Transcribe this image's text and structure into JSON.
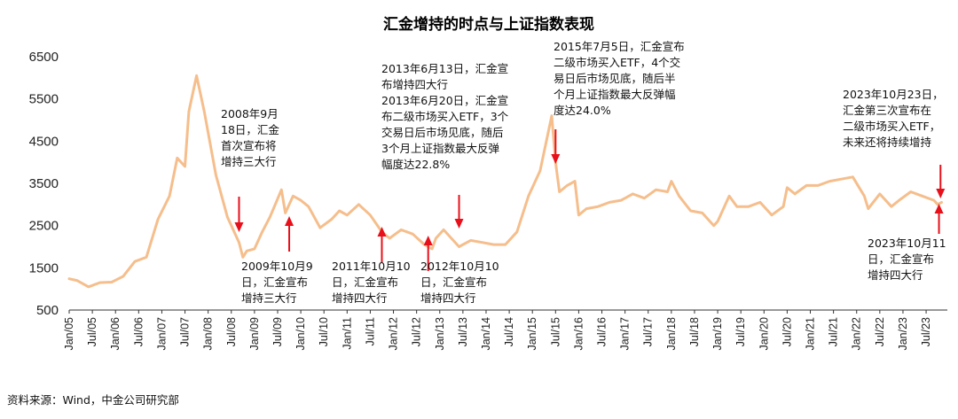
{
  "chart_data": {
    "type": "line",
    "title": "汇金增持的时点与上证指数表现",
    "source": "资料来源：Wind，中金公司研究部",
    "ylim": [
      500,
      6500
    ],
    "yticks": [
      500,
      1500,
      2500,
      3500,
      4500,
      5500,
      6500
    ],
    "xticks": [
      "Jan/05",
      "Jul/05",
      "Jan/06",
      "Jul/06",
      "Jan/07",
      "Jul/07",
      "Jan/08",
      "Jul/08",
      "Jan/09",
      "Jul/09",
      "Jan/10",
      "Jul/10",
      "Jan/11",
      "Jul/11",
      "Jan/12",
      "Jul/12",
      "Jan/13",
      "Jul/13",
      "Jan/14",
      "Jul/14",
      "Jan/15",
      "Jul/15",
      "Jan/16",
      "Jul/16",
      "Jan/17",
      "Jul/17",
      "Jan/18",
      "Jul/18",
      "Jan/19",
      "Jul/19",
      "Jan/20",
      "Jul/20",
      "Jan/21",
      "Jul/21",
      "Jan/22",
      "Jul/22",
      "Jan/23",
      "Jul/23"
    ],
    "line_color": "#F5BE8C",
    "arrow_color": "#E8101A",
    "series": [
      {
        "x": [
          "2005-01",
          "2005-03",
          "2005-06",
          "2005-09",
          "2005-12",
          "2006-03",
          "2006-06",
          "2006-09",
          "2006-12",
          "2007-03",
          "2007-05",
          "2007-07",
          "2007-08",
          "2007-10",
          "2007-12",
          "2008-03",
          "2008-06",
          "2008-09",
          "2008-10",
          "2008-11",
          "2009-01",
          "2009-03",
          "2009-05",
          "2009-08",
          "2009-09",
          "2009-11",
          "2010-01",
          "2010-03",
          "2010-06",
          "2010-09",
          "2010-11",
          "2011-01",
          "2011-04",
          "2011-07",
          "2011-10",
          "2011-12",
          "2012-03",
          "2012-06",
          "2012-09",
          "2012-11",
          "2012-12",
          "2013-02",
          "2013-06",
          "2013-09",
          "2013-12",
          "2014-03",
          "2014-06",
          "2014-09",
          "2014-12",
          "2015-03",
          "2015-06",
          "2015-07",
          "2015-08",
          "2015-10",
          "2015-12",
          "2016-01",
          "2016-03",
          "2016-06",
          "2016-09",
          "2016-12",
          "2017-03",
          "2017-06",
          "2017-09",
          "2017-12",
          "2018-01",
          "2018-03",
          "2018-06",
          "2018-09",
          "2018-12",
          "2019-01",
          "2019-04",
          "2019-06",
          "2019-09",
          "2019-12",
          "2020-03",
          "2020-06",
          "2020-07",
          "2020-09",
          "2020-12",
          "2021-03",
          "2021-06",
          "2021-09",
          "2021-12",
          "2022-03",
          "2022-04",
          "2022-07",
          "2022-10",
          "2022-12",
          "2023-03",
          "2023-06",
          "2023-09",
          "2023-10",
          "2023-11"
        ],
        "values": [
          1240,
          1200,
          1050,
          1150,
          1160,
          1300,
          1650,
          1750,
          2650,
          3200,
          4100,
          3900,
          5200,
          6050,
          5200,
          3700,
          2700,
          2100,
          1750,
          1900,
          1950,
          2350,
          2700,
          3350,
          2800,
          3200,
          3100,
          2950,
          2450,
          2650,
          2850,
          2750,
          3000,
          2750,
          2350,
          2200,
          2400,
          2300,
          2050,
          1950,
          2200,
          2400,
          2000,
          2150,
          2100,
          2050,
          2050,
          2350,
          3200,
          3800,
          5100,
          4000,
          3300,
          3450,
          3550,
          2750,
          2900,
          2950,
          3050,
          3100,
          3250,
          3150,
          3350,
          3300,
          3550,
          3200,
          2850,
          2800,
          2500,
          2600,
          3200,
          2950,
          2950,
          3050,
          2750,
          2950,
          3400,
          3250,
          3450,
          3450,
          3550,
          3600,
          3650,
          3200,
          2900,
          3250,
          2950,
          3100,
          3300,
          3200,
          3100,
          3000,
          3050
        ]
      }
    ],
    "annotations": [
      {
        "date": "2008-09",
        "direction": "down",
        "lines": [
          "2008年9月",
          "18日，汇金",
          "首次宣布将",
          "增持三大行"
        ]
      },
      {
        "date": "2009-10",
        "direction": "up",
        "lines": [
          "2009年10月9",
          "日，汇金宣布",
          "增持三大行"
        ]
      },
      {
        "date": "2011-10",
        "direction": "up",
        "lines": [
          "2011年10月10",
          "日，汇金宣布",
          "增持四大行"
        ]
      },
      {
        "date": "2012-10",
        "direction": "up",
        "lines": [
          "2012年10月10",
          "日，汇金宣布",
          "增持四大行"
        ]
      },
      {
        "date": "2013-06",
        "direction": "down",
        "lines": [
          "2013年6月13日，汇金宣",
          "布增持四大行",
          "2013年6月20日，汇金宣",
          "布二级市场买入ETF，3个",
          "交易日后市场见底，随后",
          "3个月上证指数最大反弹",
          "幅度达22.8%"
        ]
      },
      {
        "date": "2015-07",
        "direction": "down",
        "lines": [
          "2015年7月5日，汇金宣布",
          "二级市场买入ETF，4个交",
          "易日后市场见底，随后半",
          "个月上证指数最大反弹幅",
          "度达24.0%"
        ]
      },
      {
        "date": "2023-10-23",
        "direction": "down",
        "lines": [
          "2023年10月23日，",
          "汇金第三次宣布在",
          "二级市场买入ETF，",
          "未来还将持续增持"
        ]
      },
      {
        "date": "2023-10-11",
        "direction": "up",
        "lines": [
          "2023年10月11",
          "日，汇金宣布",
          "增持四大行"
        ]
      }
    ]
  }
}
